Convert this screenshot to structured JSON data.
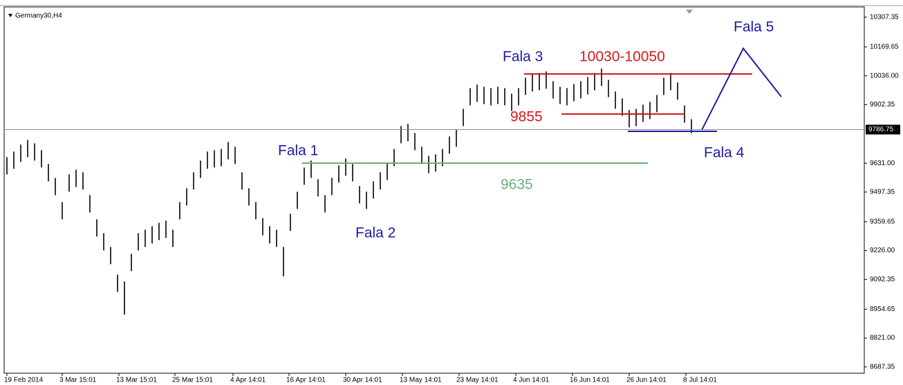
{
  "chart_data": {
    "type": "ohlc",
    "symbol": "Germany30,H4",
    "ylim": [
      8658,
      10355
    ],
    "xlim": [
      -0.4,
      124
    ],
    "yticks": [
      10307.35,
      10169.65,
      {
        "value": 10036,
        "label": "10036.00"
      },
      9902.35,
      {
        "value": 9631,
        "label": "9631.00"
      },
      9497.35,
      9359.65,
      {
        "value": 9226,
        "label": "9226.00"
      },
      9092.35,
      8954.65,
      {
        "value": 8821,
        "label": "8821.00"
      },
      8687.35
    ],
    "last_price": 9786.75,
    "xticks": [
      {
        "value": 0,
        "label": "19 Feb 2014"
      },
      {
        "value": 8,
        "label": "3 Mar 15:01"
      },
      {
        "value": 16.2,
        "label": "13 Mar 15:01"
      },
      {
        "value": 24.3,
        "label": "25 Mar 15:01"
      },
      {
        "value": 32.7,
        "label": "4 Apr 14:01"
      },
      {
        "value": 40.8,
        "label": "16 Apr 14:01"
      },
      {
        "value": 49,
        "label": "30 Apr 14:01"
      },
      {
        "value": 57.2,
        "label": "13 May 14:01"
      },
      {
        "value": 65.4,
        "label": "23 May 14:01"
      },
      {
        "value": 73.6,
        "label": "4 Jun 14:01"
      },
      {
        "value": 81.8,
        "label": "16 Jun 14:01"
      },
      {
        "value": 90,
        "label": "26 Jun 14:01"
      },
      {
        "value": 98.2,
        "label": "8 Jul 14:01"
      }
    ],
    "color": "#000000",
    "high": [
      9659,
      9685,
      9717,
      9739,
      9723,
      9691,
      9627,
      9563,
      9451,
      9579,
      9601,
      9589,
      9483,
      9371,
      9307,
      9243,
      9115,
      9083,
      9211,
      9307,
      9323,
      9339,
      9355,
      9365,
      9323,
      9451,
      9515,
      9589,
      9643,
      9685,
      9691,
      9697,
      9729,
      9707,
      9589,
      9515,
      9451,
      9377,
      9339,
      9323,
      9243,
      9397,
      9499,
      9611,
      9643,
      9557,
      9483,
      9563,
      9621,
      9653,
      9627,
      9525,
      9499,
      9547,
      9589,
      9633,
      9697,
      9803,
      9813,
      9771,
      9707,
      9665,
      9672,
      9697,
      9755,
      9787,
      9883,
      9979,
      9995,
      9985,
      9979,
      9985,
      9979,
      9953,
      9979,
      10027,
      10043,
      10049,
      10056,
      10011,
      9985,
      9979,
      9998,
      10011,
      10030,
      10049,
      10069,
      10017,
      9963,
      9931,
      9877,
      9883,
      9902,
      9915,
      9947,
      10027,
      10049,
      10005,
      9899,
      9835
    ],
    "low": [
      9579,
      9605,
      9637,
      9659,
      9643,
      9611,
      9547,
      9483,
      9371,
      9499,
      9521,
      9509,
      9403,
      9291,
      9227,
      9163,
      9035,
      8930,
      9131,
      9227,
      9243,
      9259,
      9275,
      9285,
      9243,
      9371,
      9435,
      9509,
      9563,
      9605,
      9611,
      9617,
      9649,
      9627,
      9509,
      9435,
      9371,
      9297,
      9259,
      9243,
      9107,
      9317,
      9419,
      9531,
      9563,
      9477,
      9403,
      9483,
      9541,
      9573,
      9547,
      9445,
      9419,
      9467,
      9509,
      9553,
      9617,
      9723,
      9733,
      9691,
      9627,
      9585,
      9592,
      9617,
      9675,
      9707,
      9803,
      9899,
      9915,
      9905,
      9899,
      9905,
      9899,
      9873,
      9899,
      9947,
      9963,
      9969,
      9976,
      9931,
      9905,
      9899,
      9918,
      9931,
      9950,
      9969,
      9989,
      9937,
      9883,
      9851,
      9797,
      9803,
      9822,
      9835,
      9867,
      9947,
      9969,
      9925,
      9819,
      9770
    ],
    "annotations": {
      "fala1": "Fala 1",
      "fala2": "Fala 2",
      "fala3": "Fala 3",
      "fala4": "Fala 4",
      "fala5": "Fala 5",
      "resistance": "10030-10050",
      "support": "9855",
      "level": "9635"
    }
  }
}
